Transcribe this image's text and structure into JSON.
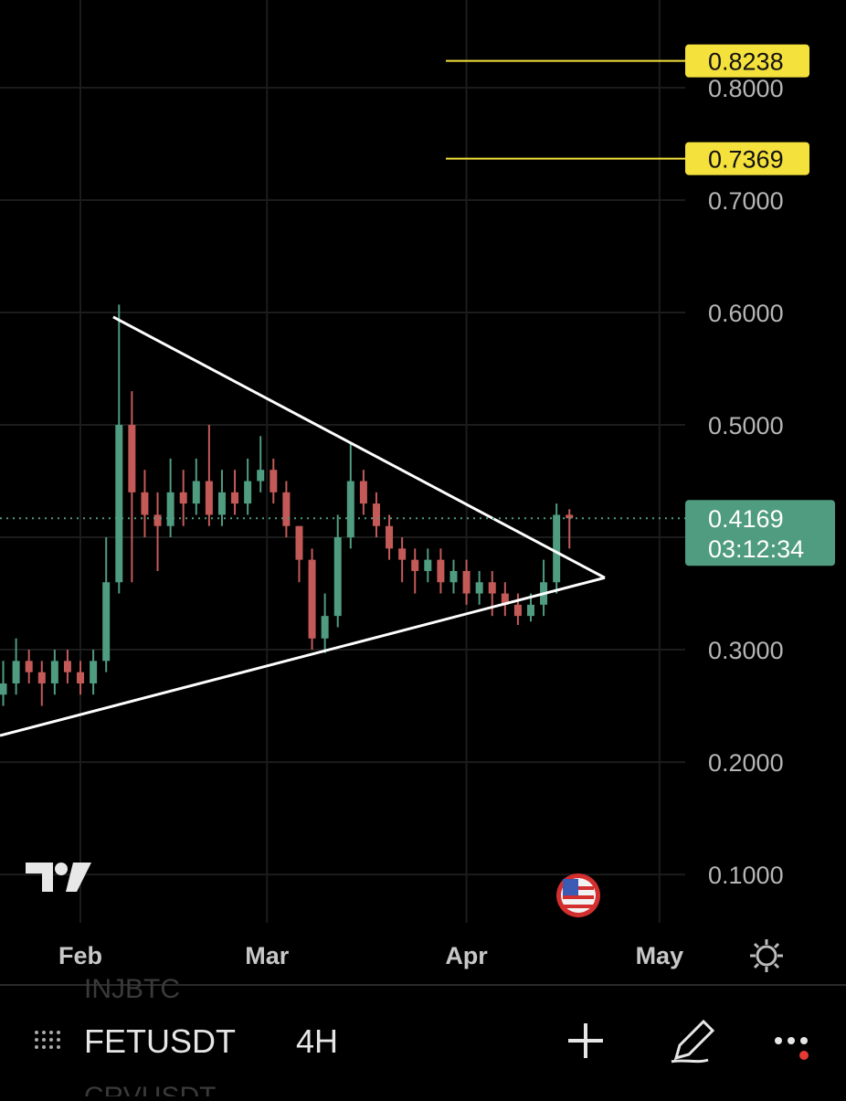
{
  "chart_data": {
    "type": "candlestick",
    "x": [
      -12,
      -10,
      -8,
      -6,
      -4,
      -2,
      0,
      2,
      4,
      6,
      8,
      10,
      12,
      14,
      16,
      18,
      20,
      22,
      24,
      26,
      28,
      30,
      32,
      34,
      36,
      38,
      40,
      42,
      44,
      46,
      48,
      50,
      52,
      54,
      56,
      58,
      60,
      62,
      64,
      66,
      68,
      70,
      72,
      74,
      76
    ],
    "open": [
      0.26,
      0.27,
      0.29,
      0.28,
      0.27,
      0.29,
      0.28,
      0.27,
      0.29,
      0.36,
      0.5,
      0.44,
      0.42,
      0.41,
      0.44,
      0.43,
      0.45,
      0.42,
      0.44,
      0.43,
      0.45,
      0.46,
      0.44,
      0.41,
      0.38,
      0.31,
      0.33,
      0.4,
      0.45,
      0.43,
      0.41,
      0.39,
      0.38,
      0.37,
      0.38,
      0.36,
      0.37,
      0.35,
      0.36,
      0.35,
      0.34,
      0.33,
      0.34,
      0.36,
      0.42
    ],
    "high": [
      0.29,
      0.31,
      0.3,
      0.29,
      0.3,
      0.3,
      0.29,
      0.3,
      0.4,
      0.607,
      0.53,
      0.46,
      0.44,
      0.47,
      0.46,
      0.47,
      0.5,
      0.46,
      0.46,
      0.47,
      0.49,
      0.47,
      0.45,
      0.41,
      0.39,
      0.35,
      0.42,
      0.485,
      0.46,
      0.44,
      0.42,
      0.4,
      0.39,
      0.39,
      0.39,
      0.38,
      0.38,
      0.37,
      0.37,
      0.36,
      0.35,
      0.35,
      0.38,
      0.43,
      0.425
    ],
    "low": [
      0.25,
      0.26,
      0.27,
      0.25,
      0.26,
      0.27,
      0.26,
      0.26,
      0.28,
      0.35,
      0.36,
      0.4,
      0.37,
      0.4,
      0.41,
      0.42,
      0.41,
      0.41,
      0.42,
      0.42,
      0.44,
      0.43,
      0.4,
      0.36,
      0.3,
      0.297,
      0.32,
      0.39,
      0.42,
      0.4,
      0.38,
      0.36,
      0.35,
      0.36,
      0.35,
      0.35,
      0.34,
      0.34,
      0.33,
      0.33,
      0.322,
      0.325,
      0.33,
      0.35,
      0.39
    ],
    "close": [
      0.27,
      0.29,
      0.28,
      0.27,
      0.29,
      0.28,
      0.27,
      0.29,
      0.36,
      0.5,
      0.44,
      0.42,
      0.41,
      0.44,
      0.43,
      0.45,
      0.42,
      0.44,
      0.43,
      0.45,
      0.46,
      0.44,
      0.41,
      0.38,
      0.31,
      0.33,
      0.4,
      0.45,
      0.43,
      0.41,
      0.39,
      0.38,
      0.37,
      0.38,
      0.36,
      0.37,
      0.35,
      0.36,
      0.35,
      0.34,
      0.33,
      0.34,
      0.36,
      0.42,
      0.4169
    ],
    "up_color": "#4f9c80",
    "down_color": "#c45a58",
    "xlim": [
      -12.5,
      94
    ],
    "ylim": [
      0.057,
      0.878
    ],
    "xticks": [
      {
        "value": 0,
        "label": "Feb"
      },
      {
        "value": 29,
        "label": "Mar"
      },
      {
        "value": 60,
        "label": "Apr"
      },
      {
        "value": 90,
        "label": "May"
      }
    ],
    "yticks": [
      {
        "value": 0.1,
        "label": "0.1000"
      },
      {
        "value": 0.2,
        "label": "0.2000"
      },
      {
        "value": 0.3,
        "label": "0.3000"
      },
      {
        "value": 0.4,
        "label": "0.4000"
      },
      {
        "value": 0.5,
        "label": "0.5000"
      },
      {
        "value": 0.6,
        "label": "0.6000"
      },
      {
        "value": 0.7,
        "label": "0.7000"
      },
      {
        "value": 0.8,
        "label": "0.8000"
      }
    ],
    "grid": true,
    "trendlines": [
      {
        "x": [
          5.1,
          81.5
        ],
        "y": [
          0.596,
          0.364
        ]
      },
      {
        "x": [
          -12.5,
          81.5
        ],
        "y": [
          0.2236,
          0.364
        ]
      }
    ],
    "trendline_color": "#ffffff",
    "levels": [
      {
        "value": 0.8238,
        "x_start": 56.8
      },
      {
        "value": 0.7369,
        "x_start": 56.8
      }
    ],
    "level_color": "#f5e13c",
    "countdown": "03:12:34"
  },
  "toolbar": {
    "symbol": "FETUSDT",
    "interval": "4H",
    "prev_symbol": "INJBTC",
    "next_symbol": "CRVUSDT"
  }
}
